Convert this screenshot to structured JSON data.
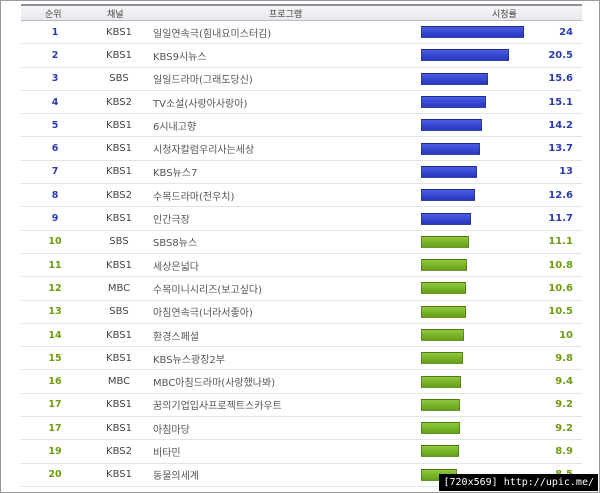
{
  "header": {
    "rank": "순위",
    "channel": "채널",
    "program": "프로그램",
    "rating": "시청률"
  },
  "rows": [
    {
      "rank": "1",
      "channel": "KBS1",
      "program": "일일연속극(힘내요미스터김)",
      "rating": "24",
      "value": 24,
      "color": "blue"
    },
    {
      "rank": "2",
      "channel": "KBS1",
      "program": "KBS9시뉴스",
      "rating": "20.5",
      "value": 20.5,
      "color": "blue"
    },
    {
      "rank": "3",
      "channel": "SBS",
      "program": "일일드라마(그래도당신)",
      "rating": "15.6",
      "value": 15.6,
      "color": "blue"
    },
    {
      "rank": "4",
      "channel": "KBS2",
      "program": "TV소설(사랑아사랑아)",
      "rating": "15.1",
      "value": 15.1,
      "color": "blue"
    },
    {
      "rank": "5",
      "channel": "KBS1",
      "program": "6시내고향",
      "rating": "14.2",
      "value": 14.2,
      "color": "blue"
    },
    {
      "rank": "6",
      "channel": "KBS1",
      "program": "시청자칼럼우리사는세상",
      "rating": "13.7",
      "value": 13.7,
      "color": "blue"
    },
    {
      "rank": "7",
      "channel": "KBS1",
      "program": "KBS뉴스7",
      "rating": "13",
      "value": 13,
      "color": "blue"
    },
    {
      "rank": "8",
      "channel": "KBS2",
      "program": "수목드라마(전우치)",
      "rating": "12.6",
      "value": 12.6,
      "color": "blue"
    },
    {
      "rank": "9",
      "channel": "KBS1",
      "program": "인간극장",
      "rating": "11.7",
      "value": 11.7,
      "color": "blue"
    },
    {
      "rank": "10",
      "channel": "SBS",
      "program": "SBS8뉴스",
      "rating": "11.1",
      "value": 11.1,
      "color": "green"
    },
    {
      "rank": "11",
      "channel": "KBS1",
      "program": "세상은넓다",
      "rating": "10.8",
      "value": 10.8,
      "color": "green"
    },
    {
      "rank": "12",
      "channel": "MBC",
      "program": "수목미니시리즈(보고싶다)",
      "rating": "10.6",
      "value": 10.6,
      "color": "green"
    },
    {
      "rank": "13",
      "channel": "SBS",
      "program": "아침연속극(너라서좋아)",
      "rating": "10.5",
      "value": 10.5,
      "color": "green"
    },
    {
      "rank": "14",
      "channel": "KBS1",
      "program": "환경스페셜",
      "rating": "10",
      "value": 10,
      "color": "green"
    },
    {
      "rank": "15",
      "channel": "KBS1",
      "program": "KBS뉴스광장2부",
      "rating": "9.8",
      "value": 9.8,
      "color": "green"
    },
    {
      "rank": "16",
      "channel": "MBC",
      "program": "MBC아침드라마(사랑했나봐)",
      "rating": "9.4",
      "value": 9.4,
      "color": "green"
    },
    {
      "rank": "17",
      "channel": "KBS1",
      "program": "꿈의기업입사프로젝트스카우트",
      "rating": "9.2",
      "value": 9.2,
      "color": "green"
    },
    {
      "rank": "17",
      "channel": "KBS1",
      "program": "아침마당",
      "rating": "9.2",
      "value": 9.2,
      "color": "green"
    },
    {
      "rank": "19",
      "channel": "KBS2",
      "program": "비타민",
      "rating": "8.9",
      "value": 8.9,
      "color": "green"
    },
    {
      "rank": "20",
      "channel": "KBS1",
      "program": "동물의세계",
      "rating": "8.5",
      "value": 8.5,
      "color": "green"
    }
  ],
  "rating_max": 24,
  "colors": {
    "top_bar": "#2737c2",
    "other_bar": "#66a01a"
  },
  "watermark": "[720x569] http://upic.me/"
}
